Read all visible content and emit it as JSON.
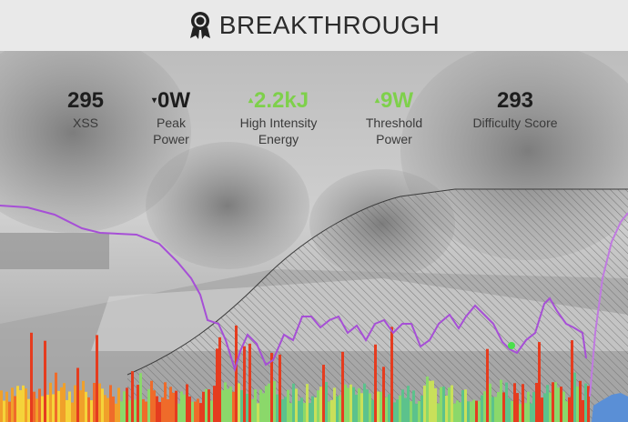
{
  "header": {
    "title": "BREAKTHROUGH",
    "icon": "award-ribbon-icon"
  },
  "stats": [
    {
      "value": "295",
      "label1": "XSS",
      "label2": "",
      "trend": "",
      "color": "#1d1d1d"
    },
    {
      "value": "0W",
      "label1": "Peak",
      "label2": "Power",
      "trend": "down",
      "color": "#1d1d1d"
    },
    {
      "value": "2.2kJ",
      "label1": "High Intensity",
      "label2": "Energy",
      "trend": "up",
      "color": "#7ed04b"
    },
    {
      "value": "9W",
      "label1": "Threshold",
      "label2": "Power",
      "trend": "up",
      "color": "#7ed04b"
    },
    {
      "value": "293",
      "label1": "Difficulty Score",
      "label2": "",
      "trend": "",
      "color": "#1d1d1d"
    }
  ],
  "colors": {
    "purple_line": "#a64fd6",
    "purple_line2": "#c07ae0",
    "marker": "#4be04b",
    "hatch": "#555555"
  }
}
